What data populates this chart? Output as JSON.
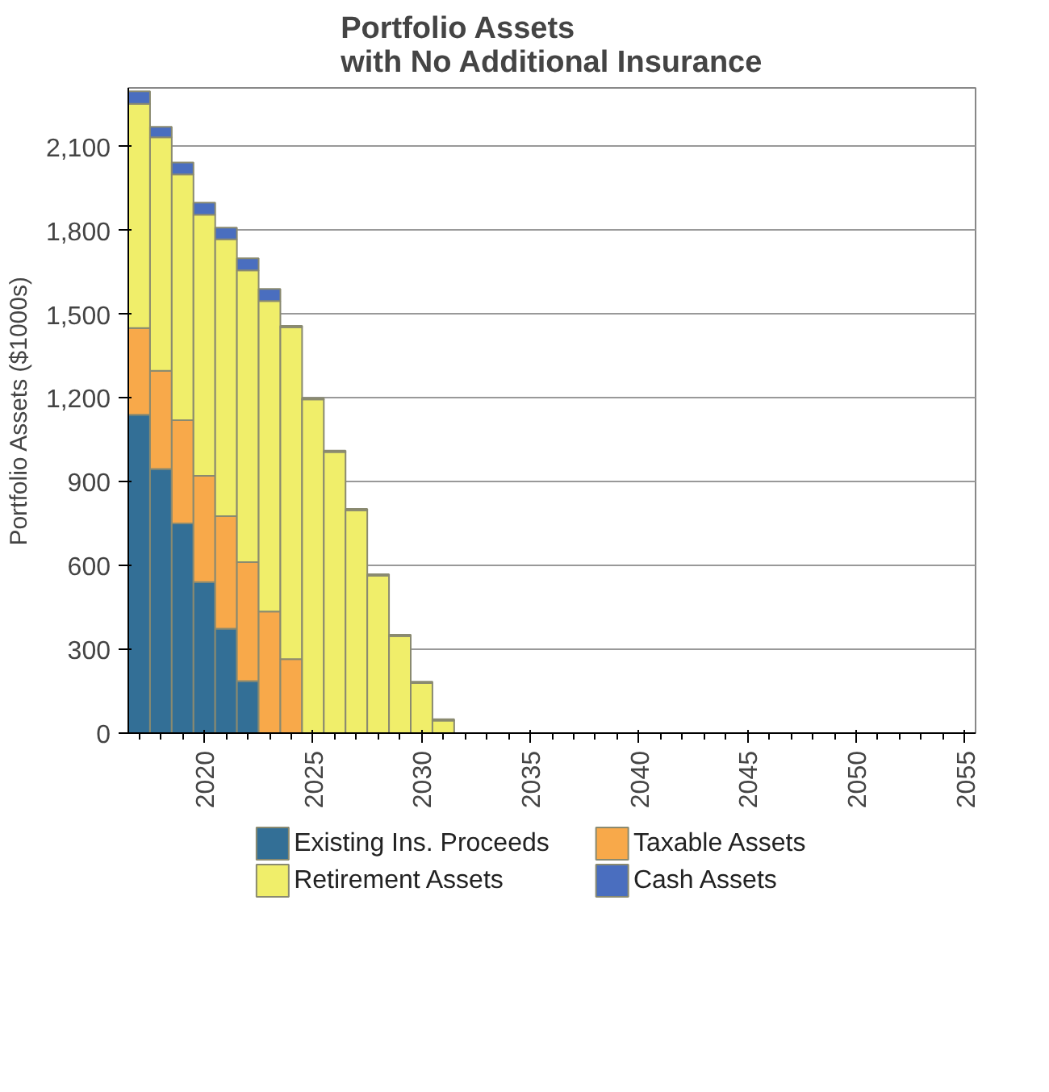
{
  "chart_data": {
    "type": "bar",
    "stacked": true,
    "title": "Portfolio Assets\nwith No Additional Insurance",
    "ylabel": "Portfolio Assets ($1000s)",
    "x": [
      2017,
      2018,
      2019,
      2020,
      2021,
      2022,
      2023,
      2024,
      2025,
      2026,
      2027,
      2028,
      2029,
      2030,
      2031
    ],
    "series": [
      {
        "name": "Existing Ins. Proceeds",
        "color": "#336f96",
        "values": [
          1140,
          946,
          751,
          541,
          374,
          186,
          0,
          0,
          0,
          0,
          0,
          0,
          0,
          0,
          0
        ]
      },
      {
        "name": "Taxable Assets",
        "color": "#f8a94a",
        "values": [
          310,
          351,
          369,
          380,
          403,
          426,
          435,
          265,
          0,
          0,
          0,
          0,
          0,
          0,
          0
        ]
      },
      {
        "name": "Retirement Assets",
        "color": "#f0ee6a",
        "values": [
          803,
          836,
          880,
          935,
          991,
          1045,
          1112,
          1188,
          1195,
          1006,
          798,
          564,
          347,
          179,
          45
        ]
      },
      {
        "name": "Cash Assets",
        "color": "#4a6ebf",
        "values": [
          45,
          38,
          43,
          43,
          42,
          43,
          43,
          5,
          5,
          5,
          5,
          5,
          5,
          5,
          5
        ]
      }
    ],
    "xlim": [
      2016.5,
      2055.5
    ],
    "xticks": [
      2020,
      2025,
      2030,
      2035,
      2040,
      2045,
      2050,
      2055
    ],
    "ylim": [
      0,
      2310
    ],
    "yticks": [
      0,
      300,
      600,
      900,
      {
        "value": 1200,
        "label": "1,200"
      },
      {
        "value": 1500,
        "label": "1,500"
      },
      {
        "value": 1800,
        "label": "1,800"
      },
      {
        "value": 2100,
        "label": "2,100"
      }
    ],
    "grid": "y",
    "legend": "bottom"
  }
}
